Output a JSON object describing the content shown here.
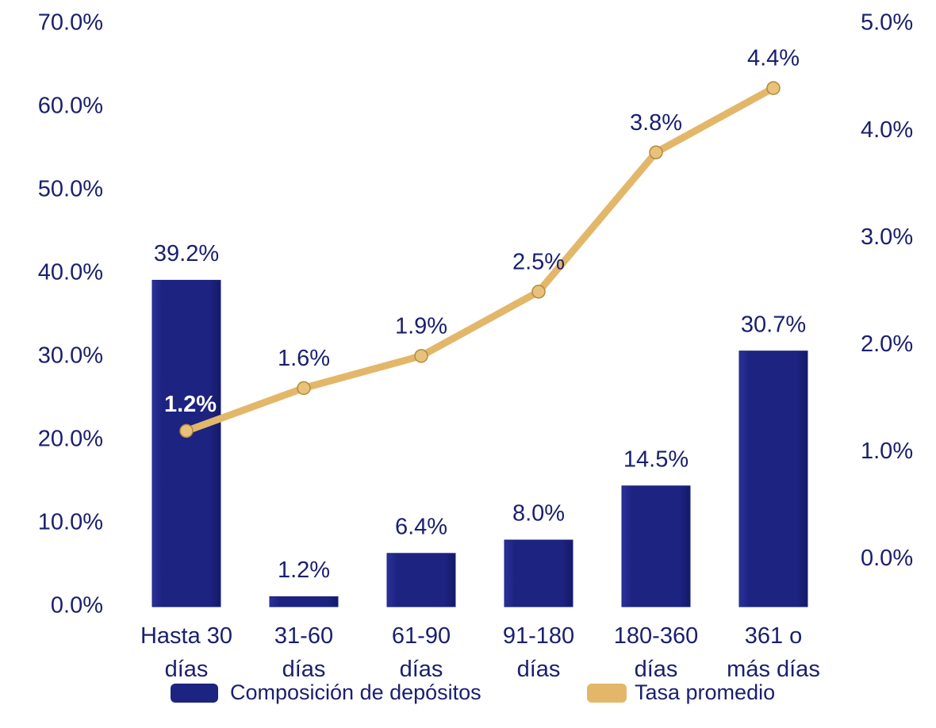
{
  "chart_data": {
    "type": "bar_line",
    "categories": [
      "Hasta 30\ndías",
      "31-60\ndías",
      "61-90\ndías",
      "91-180\ndías",
      "180-360\ndías",
      "361 o\nmás días"
    ],
    "series": [
      {
        "name": "Composición de depósitos",
        "type": "bar",
        "color": "#1c2380",
        "values": [
          39.2,
          1.2,
          6.4,
          8.0,
          14.5,
          30.7
        ],
        "value_labels": [
          "39.2%",
          "1.2%",
          "6.4%",
          "8.0%",
          "14.5%",
          "30.7%"
        ]
      },
      {
        "name": "Tasa promedio",
        "type": "line",
        "axis": "y2",
        "color": "#e3b76a",
        "values": [
          1.2,
          1.6,
          1.9,
          2.5,
          3.8,
          4.4
        ],
        "value_labels": [
          "1.2%",
          "1.6%",
          "1.9%",
          "2.5%",
          "3.8%",
          "4.4%"
        ]
      }
    ],
    "ylim": [
      0,
      70
    ],
    "yticks": [
      {
        "value": 0,
        "label": "0.0%"
      },
      {
        "value": 10,
        "label": "10.0%"
      },
      {
        "value": 20,
        "label": "20.0%"
      },
      {
        "value": 30,
        "label": "30.0%"
      },
      {
        "value": 40,
        "label": "40.0%"
      },
      {
        "value": 50,
        "label": "50.0%"
      },
      {
        "value": 60,
        "label": "60.0%"
      },
      {
        "value": 70,
        "label": "70.0%"
      }
    ],
    "y2lim": [
      -0.44,
      5
    ],
    "y2ticks": [
      {
        "value": 0,
        "label": "0.0%"
      },
      {
        "value": 1,
        "label": "1.0%"
      },
      {
        "value": 2,
        "label": "2.0%"
      },
      {
        "value": 3,
        "label": "3.0%"
      },
      {
        "value": 4,
        "label": "4.0%"
      },
      {
        "value": 5,
        "label": "5.0%"
      }
    ],
    "legend": "bottom"
  }
}
